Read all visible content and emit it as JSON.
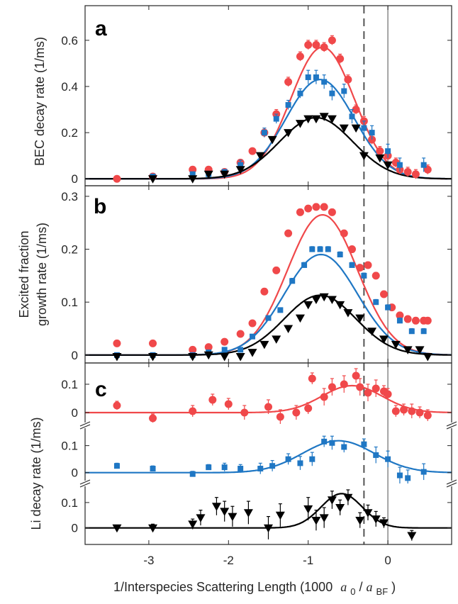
{
  "chart_data": [
    {
      "type": "scatter",
      "panel_letter": "a",
      "ylabel": "BEC decay rate (1/ms)",
      "ylim": [
        -0.03,
        0.75
      ],
      "yticks": [
        0,
        0.2,
        0.4,
        0.6
      ],
      "ytick_labels": [
        "0",
        "0.2",
        "0.4",
        "0.6"
      ],
      "series": [
        {
          "name": "red",
          "color": "#f0484a",
          "marker": "circle",
          "x": [
            -3.4,
            -2.95,
            -2.45,
            -2.25,
            -2.05,
            -1.85,
            -1.7,
            -1.55,
            -1.4,
            -1.25,
            -1.1,
            -1.0,
            -0.9,
            -0.8,
            -0.7,
            -0.6,
            -0.5,
            -0.4,
            -0.3,
            -0.2,
            -0.1,
            0.0,
            0.1,
            0.15,
            0.25,
            0.35,
            0.5
          ],
          "y": [
            0.0,
            0.01,
            0.04,
            0.04,
            0.03,
            0.07,
            0.12,
            0.2,
            0.28,
            0.42,
            0.53,
            0.58,
            0.58,
            0.57,
            0.6,
            0.52,
            0.43,
            0.3,
            0.25,
            0.17,
            0.12,
            0.1,
            0.07,
            0.04,
            0.03,
            0.02,
            0.04
          ],
          "err": [
            0.01,
            0.01,
            0.01,
            0.01,
            0.01,
            0.01,
            0.01,
            0.02,
            0.02,
            0.02,
            0.02,
            0.02,
            0.02,
            0.02,
            0.02,
            0.02,
            0.02,
            0.02,
            0.02,
            0.02,
            0.02,
            0.02,
            0.02,
            0.02,
            0.02,
            0.02,
            0.02
          ]
        },
        {
          "name": "blue",
          "color": "#1f77c4",
          "marker": "square",
          "x": [
            -2.95,
            -2.45,
            -2.25,
            -2.05,
            -1.85,
            -1.55,
            -1.4,
            -1.25,
            -1.1,
            -1.0,
            -0.9,
            -0.8,
            -0.7,
            -0.55,
            -0.45,
            -0.3,
            -0.2,
            0.0,
            0.15,
            0.45
          ],
          "y": [
            0.01,
            0.02,
            0.02,
            0.03,
            0.06,
            0.2,
            0.26,
            0.32,
            0.37,
            0.44,
            0.44,
            0.42,
            0.37,
            0.38,
            0.27,
            0.22,
            0.2,
            0.12,
            0.06,
            0.06
          ],
          "err": [
            0.01,
            0.01,
            0.01,
            0.01,
            0.02,
            0.02,
            0.02,
            0.02,
            0.02,
            0.03,
            0.03,
            0.03,
            0.03,
            0.03,
            0.03,
            0.03,
            0.03,
            0.03,
            0.03,
            0.03
          ]
        },
        {
          "name": "black",
          "color": "#000000",
          "marker": "triangle-down",
          "x": [
            -2.95,
            -2.45,
            -2.25,
            -2.05,
            -1.85,
            -1.6,
            -1.45,
            -1.25,
            -1.1,
            -1.0,
            -0.9,
            -0.8,
            -0.7,
            -0.55,
            -0.4,
            -0.3,
            -0.1,
            0.0
          ],
          "y": [
            0.0,
            0.0,
            0.02,
            0.02,
            0.04,
            0.1,
            0.17,
            0.2,
            0.24,
            0.26,
            0.26,
            0.27,
            0.26,
            0.22,
            0.22,
            0.1,
            0.09,
            0.06
          ],
          "err": [
            0.01,
            0.01,
            0.01,
            0.01,
            0.01,
            0.01,
            0.01,
            0.01,
            0.01,
            0.01,
            0.01,
            0.01,
            0.01,
            0.01,
            0.01,
            0.01,
            0.01,
            0.01
          ]
        }
      ],
      "fits": [
        {
          "color": "#f0484a",
          "amp": 0.57,
          "mu": -0.82,
          "sigma": 0.4
        },
        {
          "color": "#1f77c4",
          "amp": 0.43,
          "mu": -0.85,
          "sigma": 0.43
        },
        {
          "color": "#000000",
          "amp": 0.265,
          "mu": -0.9,
          "sigma": 0.46
        }
      ]
    },
    {
      "type": "scatter",
      "panel_letter": "b",
      "ylabel": "Excited fraction growth rate (1/ms)",
      "ylabel_lines": [
        "Excited fraction",
        "growth rate (1/ms)"
      ],
      "ylim": [
        -0.015,
        0.32
      ],
      "yticks": [
        0,
        0.1,
        0.2,
        0.3
      ],
      "ytick_labels": [
        "0",
        "0.1",
        "0.2",
        "0.3"
      ],
      "series": [
        {
          "name": "red",
          "color": "#f0484a",
          "marker": "circle",
          "x": [
            -3.4,
            -2.95,
            -2.45,
            -2.25,
            -2.05,
            -1.85,
            -1.7,
            -1.55,
            -1.4,
            -1.25,
            -1.1,
            -1.0,
            -0.9,
            -0.8,
            -0.7,
            -0.55,
            -0.45,
            -0.35,
            -0.25,
            -0.15,
            -0.05,
            0.05,
            0.15,
            0.25,
            0.35,
            0.45,
            0.5
          ],
          "y": [
            0.022,
            0.022,
            0.01,
            0.015,
            0.025,
            0.04,
            0.06,
            0.12,
            0.16,
            0.23,
            0.27,
            0.277,
            0.28,
            0.28,
            0.27,
            0.23,
            0.2,
            0.165,
            0.17,
            0.15,
            0.115,
            0.09,
            0.075,
            0.068,
            0.065,
            0.065,
            0.065
          ],
          "err": [
            0.004,
            0.004,
            0.004,
            0.004,
            0.004,
            0.004,
            0.004,
            0.006,
            0.006,
            0.006,
            0.006,
            0.006,
            0.006,
            0.006,
            0.006,
            0.006,
            0.006,
            0.006,
            0.006,
            0.006,
            0.006,
            0.006,
            0.006,
            0.006,
            0.006,
            0.006,
            0.006
          ]
        },
        {
          "name": "blue",
          "color": "#1f77c4",
          "marker": "square",
          "x": [
            -3.4,
            -2.95,
            -2.45,
            -2.25,
            -2.05,
            -1.85,
            -1.7,
            -1.5,
            -1.35,
            -1.2,
            -1.05,
            -0.95,
            -0.85,
            -0.75,
            -0.6,
            -0.45,
            -0.3,
            -0.15,
            0.0,
            0.15,
            0.3,
            0.45
          ],
          "y": [
            0.0,
            0.0,
            0.0,
            0.005,
            0.01,
            0.01,
            0.035,
            0.07,
            0.085,
            0.14,
            0.17,
            0.2,
            0.2,
            0.2,
            0.19,
            0.17,
            0.15,
            0.1,
            0.09,
            0.065,
            0.045,
            0.045
          ],
          "err": [
            0.003,
            0.003,
            0.003,
            0.003,
            0.003,
            0.003,
            0.004,
            0.004,
            0.004,
            0.005,
            0.005,
            0.005,
            0.005,
            0.005,
            0.005,
            0.005,
            0.005,
            0.005,
            0.005,
            0.005,
            0.005,
            0.005
          ]
        },
        {
          "name": "black",
          "color": "#000000",
          "marker": "triangle-down",
          "x": [
            -3.4,
            -2.95,
            -2.45,
            -2.25,
            -2.05,
            -1.85,
            -1.7,
            -1.55,
            -1.4,
            -1.25,
            -1.1,
            -1.0,
            -0.9,
            -0.8,
            -0.7,
            -0.6,
            -0.5,
            -0.35,
            -0.2,
            -0.05,
            0.1,
            0.25,
            0.4,
            0.5
          ],
          "y": [
            -0.003,
            -0.003,
            -0.003,
            0.0,
            -0.003,
            -0.003,
            0.005,
            0.02,
            0.03,
            0.05,
            0.07,
            0.095,
            0.105,
            0.11,
            0.105,
            0.095,
            0.08,
            0.07,
            0.045,
            0.03,
            0.02,
            0.01,
            0.01,
            -0.003
          ],
          "err": [
            0.003,
            0.003,
            0.003,
            0.003,
            0.003,
            0.003,
            0.003,
            0.003,
            0.003,
            0.003,
            0.003,
            0.003,
            0.003,
            0.003,
            0.003,
            0.003,
            0.003,
            0.003,
            0.003,
            0.003,
            0.003,
            0.003,
            0.003,
            0.003
          ]
        }
      ],
      "fits": [
        {
          "color": "#f0484a",
          "amp": 0.265,
          "mu": -0.82,
          "sigma": 0.44
        },
        {
          "color": "#1f77c4",
          "amp": 0.19,
          "mu": -0.84,
          "sigma": 0.46
        },
        {
          "color": "#000000",
          "amp": 0.113,
          "mu": -0.85,
          "sigma": 0.45
        }
      ]
    },
    {
      "type": "scatter",
      "panel_letter": "c",
      "ylabel": "Li decay rate (1/ms)",
      "note": "broken y-axis: three stacked sub-axes (red top, blue middle, black bottom)",
      "sub_axes": [
        {
          "ylim": [
            -0.045,
            0.175
          ],
          "yticks": [
            0,
            0.1
          ],
          "ytick_labels": [
            "0",
            "0.1"
          ],
          "series": {
            "name": "red",
            "color": "#f0484a",
            "marker": "circle",
            "x": [
              -3.4,
              -2.95,
              -2.45,
              -2.2,
              -2.0,
              -1.8,
              -1.5,
              -1.35,
              -1.15,
              -1.0,
              -0.95,
              -0.8,
              -0.7,
              -0.55,
              -0.4,
              -0.35,
              -0.25,
              -0.15,
              -0.05,
              0.0,
              0.1,
              0.2,
              0.3,
              0.4,
              0.5
            ],
            "y": [
              0.025,
              -0.02,
              0.005,
              0.045,
              0.03,
              0.0,
              0.02,
              -0.015,
              0.0,
              0.015,
              0.12,
              0.055,
              0.09,
              0.1,
              0.13,
              0.09,
              0.07,
              0.085,
              0.075,
              0.065,
              0.005,
              0.01,
              0.005,
              0.0,
              -0.01
            ],
            "err": [
              0.015,
              0.015,
              0.02,
              0.02,
              0.02,
              0.025,
              0.025,
              0.025,
              0.025,
              0.02,
              0.02,
              0.03,
              0.03,
              0.03,
              0.025,
              0.03,
              0.03,
              0.03,
              0.02,
              0.02,
              0.02,
              0.02,
              0.025,
              0.02,
              0.02
            ]
          },
          "fit": {
            "color": "#f0484a",
            "amp": 0.095,
            "mu": -0.45,
            "sigma": 0.38
          }
        },
        {
          "ylim": [
            -0.04,
            0.175
          ],
          "yticks": [
            0,
            0.1
          ],
          "ytick_labels": [
            "0",
            "0.1"
          ],
          "series": {
            "name": "blue",
            "color": "#1f77c4",
            "marker": "square",
            "x": [
              -3.4,
              -2.95,
              -2.45,
              -2.25,
              -2.05,
              -1.85,
              -1.6,
              -1.45,
              -1.25,
              -1.1,
              -0.95,
              -0.8,
              -0.7,
              -0.55,
              -0.3,
              -0.15,
              0.0,
              0.15,
              0.25,
              0.45
            ],
            "y": [
              0.025,
              0.015,
              -0.005,
              0.02,
              0.02,
              0.015,
              0.015,
              0.025,
              0.05,
              0.035,
              0.05,
              0.115,
              0.11,
              0.095,
              0.105,
              0.065,
              0.05,
              -0.01,
              -0.02,
              0.003
            ],
            "err": [
              0.01,
              0.01,
              0.01,
              0.01,
              0.015,
              0.015,
              0.02,
              0.02,
              0.02,
              0.025,
              0.025,
              0.02,
              0.025,
              0.02,
              0.02,
              0.03,
              0.03,
              0.03,
              0.03,
              0.03
            ]
          },
          "fit": {
            "color": "#1f77c4",
            "amp": 0.118,
            "mu": -0.62,
            "sigma": 0.45
          }
        },
        {
          "ylim": [
            -0.065,
            0.175
          ],
          "yticks": [
            0,
            0.1
          ],
          "ytick_labels": [
            "0",
            "0.1"
          ],
          "series": {
            "name": "black",
            "color": "#000000",
            "marker": "triangle-down",
            "x": [
              -3.4,
              -2.95,
              -2.45,
              -2.35,
              -2.15,
              -2.05,
              -1.95,
              -1.75,
              -1.5,
              -1.35,
              -1.0,
              -0.9,
              -0.8,
              -0.7,
              -0.6,
              -0.5,
              -0.35,
              -0.25,
              -0.15,
              -0.05,
              0.3
            ],
            "y": [
              0.0,
              0.0,
              0.015,
              0.04,
              0.085,
              0.065,
              0.045,
              0.06,
              0.0,
              0.05,
              0.075,
              0.03,
              0.04,
              0.11,
              0.08,
              0.12,
              0.03,
              0.06,
              0.035,
              0.02,
              -0.03
            ],
            "err": [
              0.01,
              0.015,
              0.02,
              0.03,
              0.035,
              0.04,
              0.04,
              0.045,
              0.045,
              0.045,
              0.045,
              0.04,
              0.04,
              0.035,
              0.03,
              0.03,
              0.03,
              0.03,
              0.03,
              0.02,
              0.02
            ]
          },
          "fit": {
            "color": "#000000",
            "amp": 0.135,
            "mu": -0.58,
            "sigma": 0.26
          }
        }
      ]
    }
  ],
  "x_axis": {
    "xlabel_text": "1/Interspecies Scattering Length (1000",
    "xlabel_symbol_a0": "a",
    "xlabel_sub_0": "0",
    "xlabel_slash": "/",
    "xlabel_symbol_a": "a",
    "xlabel_sub_bf": "BF",
    "xlabel_close": ")",
    "xlim": [
      -3.8,
      0.8
    ],
    "xticks": [
      -3,
      -2,
      -1,
      0
    ],
    "xtick_labels": [
      "-3",
      "-2",
      "-1",
      "0"
    ],
    "dashed_line_x": -0.3,
    "solid_line_x": 0.0
  }
}
